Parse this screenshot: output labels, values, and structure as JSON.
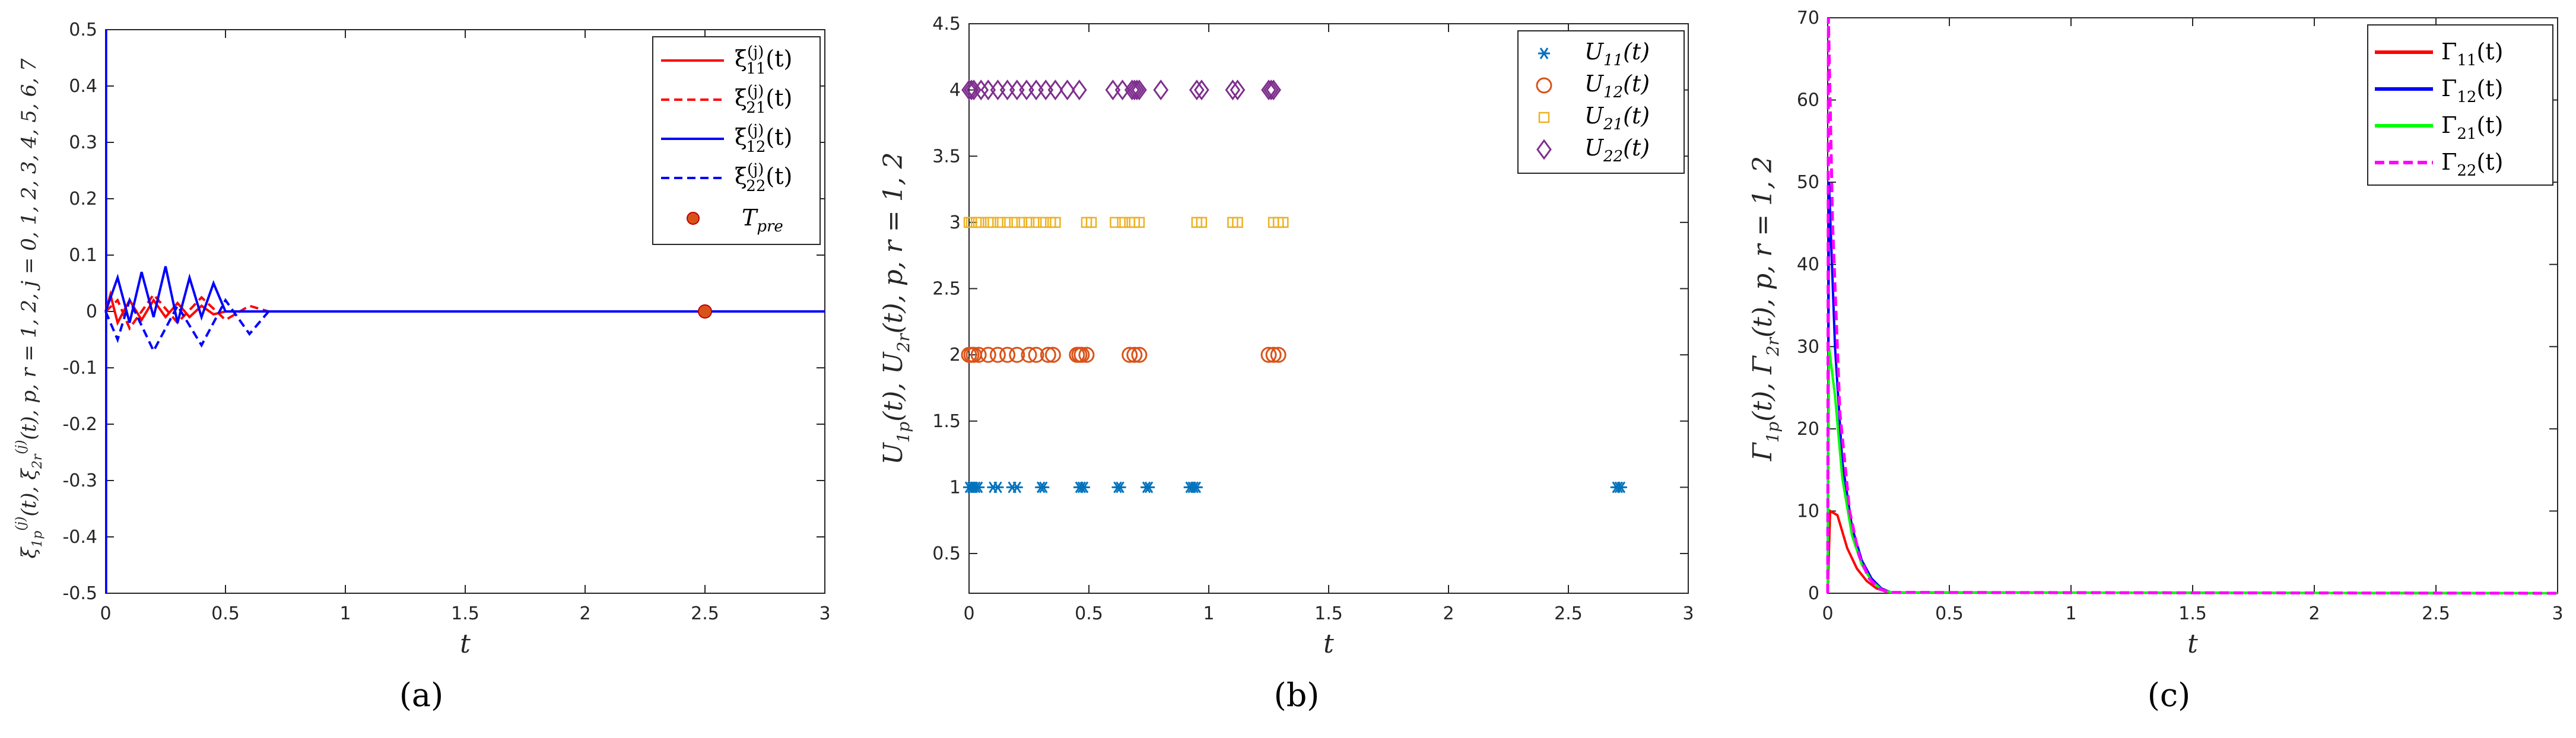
{
  "panels": [
    {
      "label": "(a)"
    },
    {
      "label": "(b)"
    },
    {
      "label": "(c)"
    }
  ],
  "chart_data": [
    {
      "type": "line",
      "xlabel": "t",
      "ylabel": "ξ_1p^(j)(t), ξ_2r^(j)(t), p, r = 1, 2, j = 0,1,2,3,4,5,6,7",
      "xlim": [
        0,
        3
      ],
      "ylim": [
        -0.5,
        0.5
      ],
      "xticks": [
        "0",
        "0.5",
        "1",
        "1.5",
        "2",
        "2.5",
        "3"
      ],
      "yticks": [
        "-0.5",
        "-0.4",
        "-0.3",
        "-0.2",
        "-0.1",
        "0",
        "0.1",
        "0.2",
        "0.3",
        "0.4",
        "0.5"
      ],
      "grid": false,
      "legend_position": "top-right",
      "legend": [
        {
          "text": "ξ11(j)(t)",
          "color": "#ff0000",
          "style": "solid"
        },
        {
          "text": "ξ21(j)(t)",
          "color": "#ff0000",
          "style": "dashed"
        },
        {
          "text": "ξ12(j)(t)",
          "color": "#0000ff",
          "style": "solid"
        },
        {
          "text": "ξ22(j)(t)",
          "color": "#0000ff",
          "style": "dashed"
        },
        {
          "text": "Tpre",
          "color": "#d95319",
          "style": "marker"
        }
      ],
      "series": [
        {
          "name": "ξ11(j)(t)",
          "color": "#ff0000",
          "dash": false,
          "x": [
            0,
            0.02,
            0.05,
            0.1,
            0.15,
            0.2,
            0.25,
            0.3,
            0.35,
            0.4,
            0.45,
            0.5,
            3
          ],
          "y": [
            0,
            0.03,
            -0.02,
            0.02,
            -0.015,
            0.02,
            -0.01,
            0.015,
            -0.01,
            0.01,
            -0.005,
            0,
            0
          ]
        },
        {
          "name": "ξ21(j)(t)",
          "color": "#ff0000",
          "dash": true,
          "x": [
            0,
            0.05,
            0.1,
            0.2,
            0.3,
            0.4,
            0.5,
            0.6,
            0.68,
            3
          ],
          "y": [
            0,
            0.02,
            -0.03,
            0.03,
            -0.02,
            0.025,
            -0.015,
            0.01,
            0,
            0
          ]
        },
        {
          "name": "ξ12(j)(t)",
          "color": "#0000ff",
          "dash": false,
          "x": [
            0,
            0.05,
            0.1,
            0.15,
            0.2,
            0.25,
            0.3,
            0.35,
            0.4,
            0.45,
            0.5,
            3
          ],
          "y": [
            0,
            0.06,
            -0.02,
            0.07,
            -0.01,
            0.08,
            -0.02,
            0.06,
            -0.01,
            0.05,
            0,
            0
          ]
        },
        {
          "name": "ξ22(j)(t)",
          "color": "#0000ff",
          "dash": true,
          "x": [
            0,
            0.05,
            0.1,
            0.2,
            0.3,
            0.4,
            0.5,
            0.6,
            0.68,
            3
          ],
          "y": [
            0,
            -0.05,
            0.02,
            -0.07,
            0.01,
            -0.06,
            0.02,
            -0.04,
            0,
            0
          ]
        }
      ],
      "marker": {
        "name": "Tpre",
        "x": 2.5,
        "y": 0,
        "color": "#d95319"
      }
    },
    {
      "type": "scatter",
      "xlabel": "t",
      "ylabel": "U_1p(t), U_2r(t), p, r = 1, 2",
      "xlim": [
        0,
        3
      ],
      "ylim": [
        0.2,
        4.5
      ],
      "xticks": [
        "0",
        "0.5",
        "1",
        "1.5",
        "2",
        "2.5",
        "3"
      ],
      "yticks": [
        "0.5",
        "1",
        "1.5",
        "2",
        "2.5",
        "3",
        "3.5",
        "4",
        "4.5"
      ],
      "grid": false,
      "legend_position": "top-right",
      "series": [
        {
          "name": "U11(t)",
          "color": "#0072bd",
          "marker": "asterisk",
          "y": 1,
          "x": [
            0.0,
            0.01,
            0.02,
            0.03,
            0.04,
            0.1,
            0.12,
            0.18,
            0.2,
            0.3,
            0.31,
            0.46,
            0.47,
            0.48,
            0.62,
            0.63,
            0.74,
            0.75,
            0.92,
            0.93,
            0.94,
            0.95,
            2.7,
            2.71,
            2.72
          ]
        },
        {
          "name": "U12(t)",
          "color": "#d95319",
          "marker": "circle",
          "y": 2,
          "x": [
            0.0,
            0.01,
            0.02,
            0.04,
            0.08,
            0.12,
            0.16,
            0.2,
            0.25,
            0.28,
            0.33,
            0.35,
            0.45,
            0.46,
            0.47,
            0.49,
            0.67,
            0.69,
            0.71,
            1.25,
            1.27,
            1.29
          ]
        },
        {
          "name": "U21(t)",
          "color": "#edb120",
          "marker": "square",
          "y": 3,
          "x": [
            0.0,
            0.01,
            0.03,
            0.05,
            0.08,
            0.1,
            0.13,
            0.16,
            0.19,
            0.22,
            0.25,
            0.28,
            0.31,
            0.34,
            0.36,
            0.49,
            0.51,
            0.61,
            0.64,
            0.67,
            0.69,
            0.71,
            0.95,
            0.97,
            1.1,
            1.12,
            1.27,
            1.29,
            1.31
          ]
        },
        {
          "name": "U22(t)",
          "color": "#7e2f8e",
          "marker": "diamond",
          "y": 4,
          "x": [
            0.0,
            0.01,
            0.02,
            0.05,
            0.08,
            0.12,
            0.16,
            0.2,
            0.24,
            0.28,
            0.32,
            0.36,
            0.41,
            0.46,
            0.6,
            0.64,
            0.68,
            0.69,
            0.7,
            0.71,
            0.8,
            0.95,
            0.97,
            1.1,
            1.12,
            1.25,
            1.26,
            1.27
          ]
        }
      ]
    },
    {
      "type": "line",
      "xlabel": "t",
      "ylabel": "Γ_1p(t), Γ_2r(t), p, r = 1, 2",
      "xlim": [
        0,
        3
      ],
      "ylim": [
        0,
        70
      ],
      "xticks": [
        "0",
        "0.5",
        "1",
        "1.5",
        "2",
        "2.5",
        "3"
      ],
      "yticks": [
        "0",
        "10",
        "20",
        "30",
        "40",
        "50",
        "60",
        "70"
      ],
      "grid": false,
      "legend_position": "top-right",
      "series": [
        {
          "name": "Γ11(t)",
          "color": "#ff0000",
          "dash": false,
          "x": [
            0,
            0.01,
            0.04,
            0.08,
            0.12,
            0.16,
            0.2,
            0.25,
            3
          ],
          "y": [
            0,
            10,
            9.5,
            5.5,
            3,
            1.5,
            0.6,
            0.1,
            0
          ]
        },
        {
          "name": "Γ12(t)",
          "color": "#0000ff",
          "dash": false,
          "x": [
            0,
            0.005,
            0.03,
            0.06,
            0.1,
            0.14,
            0.18,
            0.22,
            0.26,
            3
          ],
          "y": [
            0,
            50,
            30,
            16,
            8,
            4,
            1.8,
            0.6,
            0.1,
            0
          ]
        },
        {
          "name": "Γ21(t)",
          "color": "#00ff00",
          "dash": false,
          "x": [
            0,
            0.005,
            0.03,
            0.06,
            0.1,
            0.14,
            0.18,
            0.22,
            0.26,
            3
          ],
          "y": [
            0,
            30,
            24,
            14,
            7,
            3.5,
            1.5,
            0.5,
            0.1,
            0
          ]
        },
        {
          "name": "Γ22(t)",
          "color": "#ff00ff",
          "dash": true,
          "x": [
            0,
            0.003,
            0.02,
            0.05,
            0.09,
            0.13,
            0.17,
            0.21,
            0.25,
            3
          ],
          "y": [
            0,
            70,
            45,
            22,
            10,
            4.5,
            1.8,
            0.6,
            0.1,
            0
          ]
        }
      ]
    }
  ]
}
